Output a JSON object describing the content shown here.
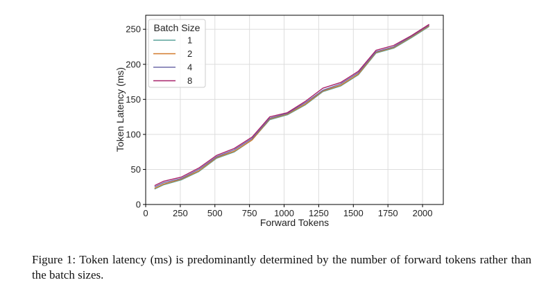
{
  "chart_data": {
    "type": "line",
    "title": "",
    "xlabel": "Forward Tokens",
    "ylabel": "Token Latency (ms)",
    "xlim": [
      0,
      2150
    ],
    "ylim": [
      0,
      270
    ],
    "xticks": [
      0,
      250,
      500,
      750,
      1000,
      1250,
      1500,
      1750,
      2000
    ],
    "yticks": [
      0,
      50,
      100,
      150,
      200,
      250
    ],
    "grid": true,
    "legend": {
      "title": "Batch Size",
      "placement": "top-left"
    },
    "x": [
      64,
      128,
      256,
      384,
      512,
      640,
      768,
      896,
      1024,
      1152,
      1280,
      1408,
      1536,
      1664,
      1792,
      1920,
      2048
    ],
    "series": [
      {
        "name": "1",
        "color": "#5aa39a",
        "values": [
          22,
          28,
          35,
          47,
          66,
          75,
          92,
          121,
          128,
          142,
          161,
          169,
          185,
          216,
          223,
          238,
          254
        ]
      },
      {
        "name": "2",
        "color": "#d27a2b",
        "values": [
          23,
          29,
          36,
          48,
          67,
          76,
          92,
          122,
          129,
          143,
          162,
          170,
          186,
          217,
          224,
          239,
          255
        ]
      },
      {
        "name": "4",
        "color": "#6e6aa8",
        "values": [
          25,
          31,
          37,
          50,
          68,
          78,
          94,
          123,
          130,
          145,
          163,
          172,
          188,
          218,
          225,
          240,
          256
        ]
      },
      {
        "name": "8",
        "color": "#a8226a",
        "values": [
          27,
          33,
          39,
          52,
          70,
          80,
          96,
          125,
          131,
          147,
          166,
          174,
          190,
          220,
          227,
          241,
          257
        ]
      }
    ]
  },
  "caption": "Figure 1: Token latency (ms) is predominantly determined by the number of forward tokens rather than the batch sizes."
}
